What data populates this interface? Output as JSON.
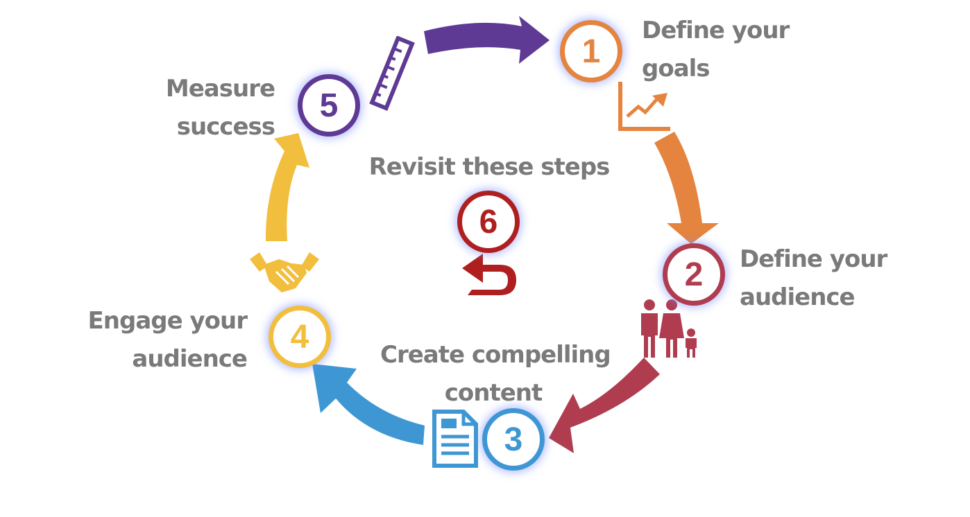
{
  "steps": [
    {
      "number": "1",
      "label_line1": "Define your",
      "label_line2": "goals",
      "color": "#E5843F",
      "icon": "growth-chart-icon"
    },
    {
      "number": "2",
      "label_line1": "Define your",
      "label_line2": "audience",
      "color": "#B03C50",
      "icon": "family-icon"
    },
    {
      "number": "3",
      "label_line1": "Create compelling",
      "label_line2": "content",
      "color": "#3E97D3",
      "icon": "document-icon"
    },
    {
      "number": "4",
      "label_line1": "Engage your",
      "label_line2": "audience",
      "color": "#F2BE3E",
      "icon": "handshake-icon"
    },
    {
      "number": "5",
      "label_line1": "Measure",
      "label_line2": "success",
      "color": "#5E3A94",
      "icon": "ruler-icon"
    },
    {
      "number": "6",
      "label_line1": "Revisit these steps",
      "label_line2": "",
      "color": "#AF1F1F",
      "icon": "return-arrow-icon"
    }
  ]
}
